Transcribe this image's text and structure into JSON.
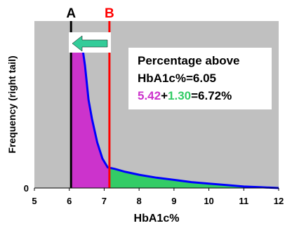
{
  "chart_data": {
    "type": "area",
    "title": "",
    "xlabel": "HbA1c%",
    "ylabel": "Frequency (right tail)",
    "xlim": [
      5,
      12
    ],
    "ylim": [
      0,
      1
    ],
    "x_ticks": [
      "5",
      "6",
      "7",
      "8",
      "9",
      "10",
      "11",
      "12"
    ],
    "y_ticks": [
      "0"
    ],
    "grid": false,
    "background_color": "#c0c0c0",
    "curve_color": "#0000ff",
    "series": [
      {
        "x": [
          6.05,
          6.2,
          6.35,
          6.45,
          6.55,
          6.65,
          6.8,
          6.95,
          7.1,
          7.3,
          7.6,
          8.0,
          8.5,
          9.0,
          9.5,
          10.0,
          10.5,
          11.0,
          11.5,
          12.0
        ],
        "y": [
          1.04,
          1.04,
          1.0,
          0.83,
          0.6,
          0.47,
          0.31,
          0.2,
          0.14,
          0.13,
          0.11,
          0.09,
          0.07,
          0.055,
          0.04,
          0.03,
          0.02,
          0.01,
          0.005,
          0.0
        ]
      }
    ],
    "shaded_regions": [
      {
        "from": 6.05,
        "to": 7.15,
        "color": "#cc33cc"
      },
      {
        "from": 7.15,
        "to": 12.0,
        "color": "#33cc66"
      }
    ],
    "markers": [
      {
        "label": "A",
        "x": 6.05,
        "color": "#000000"
      },
      {
        "label": "B",
        "x": 7.15,
        "color": "#ff0000"
      }
    ],
    "arrow": {
      "direction": "left",
      "color": "#33cc99"
    },
    "annotation": {
      "line1": "Percentage above",
      "line2": "HbA1c%=6.05",
      "part_magenta": "5.42",
      "plus": "+",
      "part_green": "1.30",
      "equals_result": "=6.72%",
      "magenta_color": "#cc33cc",
      "green_color": "#33cc66"
    }
  }
}
